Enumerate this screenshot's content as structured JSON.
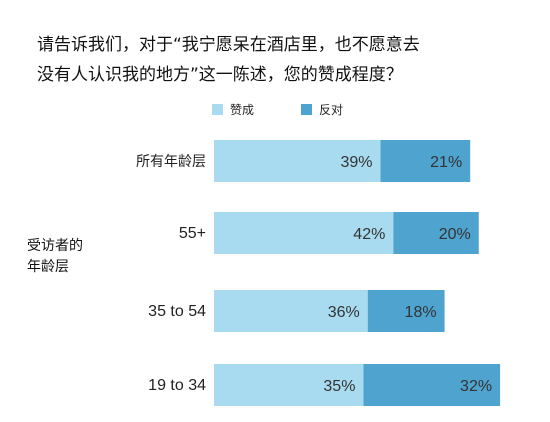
{
  "chart_data": {
    "type": "bar",
    "orientation": "horizontal",
    "stacked": true,
    "title_lines": [
      "请告诉我们，对于“我宁愿呆在酒店里，也不愿意去",
      "没有人认识我的地方”这一陈述，您的赞成程度？"
    ],
    "ylabel_lines": [
      "受访者的",
      "年龄层"
    ],
    "categories": [
      "所有年龄层",
      "55+",
      "35 to 54",
      "19 to 34"
    ],
    "series": [
      {
        "name": "赞成",
        "values": [
          39,
          42,
          36,
          35
        ],
        "labels": [
          "39%",
          "42%",
          "36%",
          "35%"
        ]
      },
      {
        "name": "反对",
        "values": [
          21,
          20,
          18,
          32
        ],
        "labels": [
          "21%",
          "20%",
          "18%",
          "32%"
        ]
      }
    ],
    "legend_position": "top",
    "grid": false
  },
  "colors": {
    "agree": "#a8dbef",
    "disagree": "#4fa3cf",
    "text": "#222222"
  }
}
